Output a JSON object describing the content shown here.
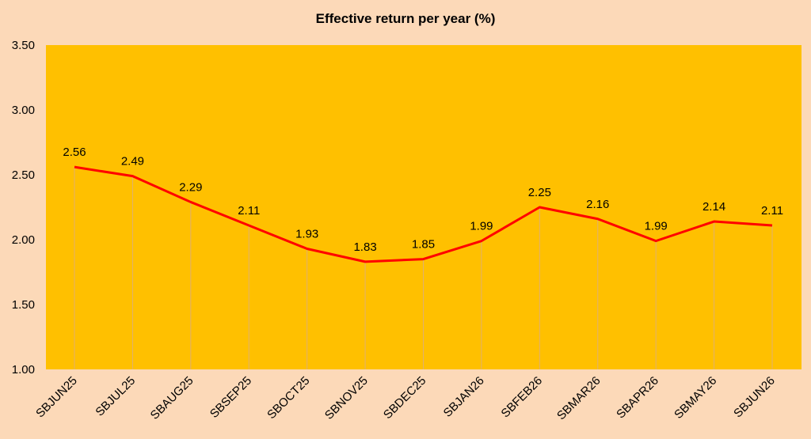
{
  "chart_data": {
    "type": "line",
    "title": "Effective return per year (%)",
    "xlabel": "",
    "ylabel": "",
    "categories": [
      "SBJUN25",
      "SBJUL25",
      "SBAUG25",
      "SBSEP25",
      "SBOCT25",
      "SBNOV25",
      "SBDEC25",
      "SBJAN26",
      "SBFEB26",
      "SBMAR26",
      "SBAPR26",
      "SBMAY26",
      "SBJUN26"
    ],
    "series": [
      {
        "values": [
          2.56,
          2.49,
          2.29,
          2.11,
          1.93,
          1.83,
          1.85,
          1.99,
          2.25,
          2.16,
          1.99,
          2.14,
          2.11
        ]
      }
    ],
    "data_labels": [
      "2.56",
      "2.49",
      "2.29",
      "2.11",
      "1.93",
      "1.83",
      "1.85",
      "1.99",
      "2.25",
      "2.16",
      "1.99",
      "2.14",
      "2.11"
    ],
    "y_ticks": [
      "1.00",
      "1.50",
      "2.00",
      "2.50",
      "3.00",
      "3.50"
    ],
    "ylim": [
      1.0,
      3.5
    ],
    "grid": false,
    "legend": "none",
    "colors": {
      "page_background": "#FCD9B8",
      "plot_background": "#FFC000",
      "line": "#FF0000",
      "drop_lines": "#E0B070"
    }
  }
}
